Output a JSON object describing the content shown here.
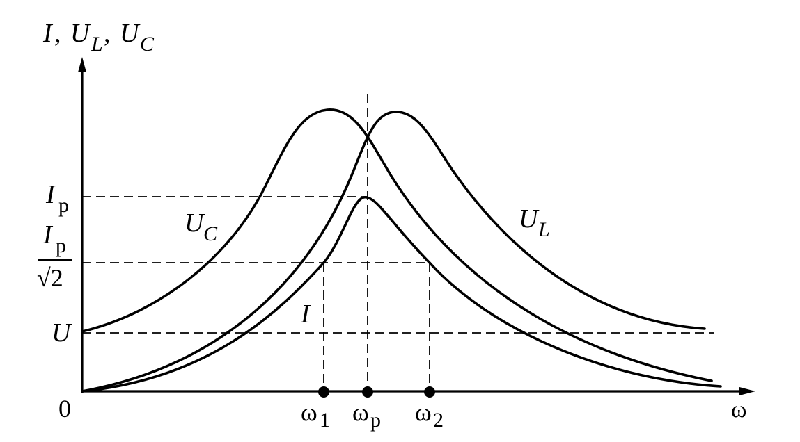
{
  "axes": {
    "y_label_I": "I",
    "y_label_sep": ", ",
    "y_label_U": "U",
    "y_label_L_sub": "L",
    "y_label_C_sub": "C",
    "x_label": "ω",
    "origin": "0"
  },
  "y_ticks": {
    "Ip_main": "I",
    "Ip_sub": "p",
    "Ip_over_sqrt2_num": "I",
    "Ip_over_sqrt2_num_sub": "p",
    "Ip_over_sqrt2_den": "√2",
    "U": "U"
  },
  "x_ticks": {
    "omega1": "ω",
    "omega1_sub": "1",
    "omegap": "ω",
    "omegap_sub": "p",
    "omega2": "ω",
    "omega2_sub": "2"
  },
  "curve_labels": {
    "UC": "U",
    "UC_sub": "C",
    "UL": "U",
    "UL_sub": "L",
    "I": "I"
  }
}
